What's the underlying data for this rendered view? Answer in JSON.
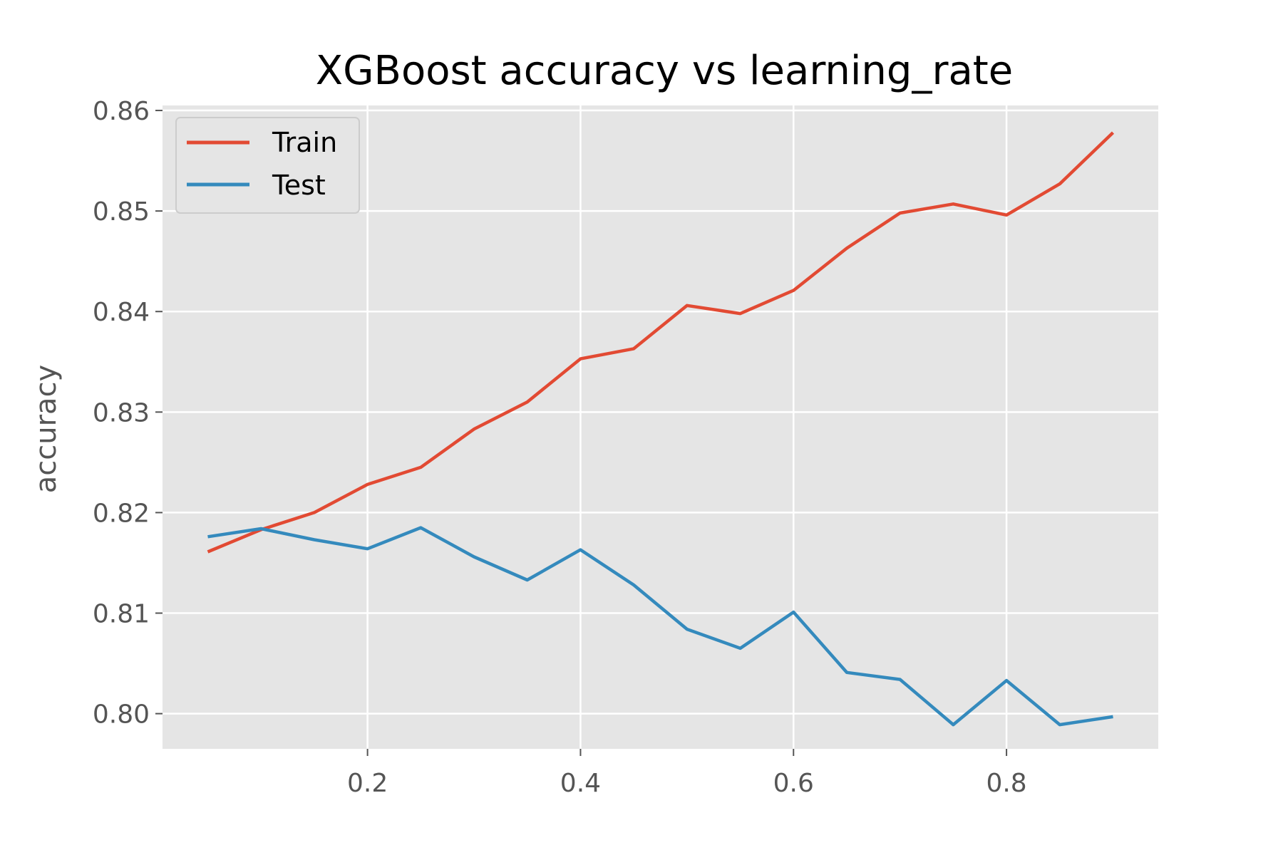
{
  "chart_data": {
    "type": "line",
    "title": "XGBoost accuracy vs learning_rate",
    "xlabel": "",
    "ylabel": "accuracy",
    "xlim": [
      0.0075,
      0.9425
    ],
    "ylim": [
      0.7965,
      0.8605
    ],
    "x_ticks": [
      0.2,
      0.4,
      0.6,
      0.8
    ],
    "x_tick_labels": [
      "0.2",
      "0.4",
      "0.6",
      "0.8"
    ],
    "y_ticks": [
      0.8,
      0.81,
      0.82,
      0.83,
      0.84,
      0.85,
      0.86
    ],
    "y_tick_labels": [
      "0.80",
      "0.81",
      "0.82",
      "0.83",
      "0.84",
      "0.85",
      "0.86"
    ],
    "grid": true,
    "legend_position": "top-left",
    "x": [
      0.05,
      0.1,
      0.15,
      0.2,
      0.25,
      0.3,
      0.35,
      0.4,
      0.45,
      0.5,
      0.55,
      0.6,
      0.65,
      0.7,
      0.75,
      0.8,
      0.85,
      0.9
    ],
    "series": [
      {
        "name": "Train",
        "color": "#E24A33",
        "values": [
          0.8161,
          0.8183,
          0.82,
          0.8228,
          0.8245,
          0.8283,
          0.831,
          0.8353,
          0.8363,
          0.8406,
          0.8398,
          0.8421,
          0.8463,
          0.8498,
          0.8507,
          0.8496,
          0.8527,
          0.8578
        ]
      },
      {
        "name": "Test",
        "color": "#348ABD",
        "values": [
          0.8176,
          0.8184,
          0.8173,
          0.8164,
          0.8185,
          0.8156,
          0.8133,
          0.8163,
          0.8128,
          0.8084,
          0.8065,
          0.8101,
          0.8041,
          0.8034,
          0.7989,
          0.8033,
          0.7989,
          0.7997
        ]
      }
    ]
  },
  "style": {
    "plot_background": "#E5E5E5",
    "grid_color": "#FFFFFF",
    "tick_color": "#555555"
  }
}
